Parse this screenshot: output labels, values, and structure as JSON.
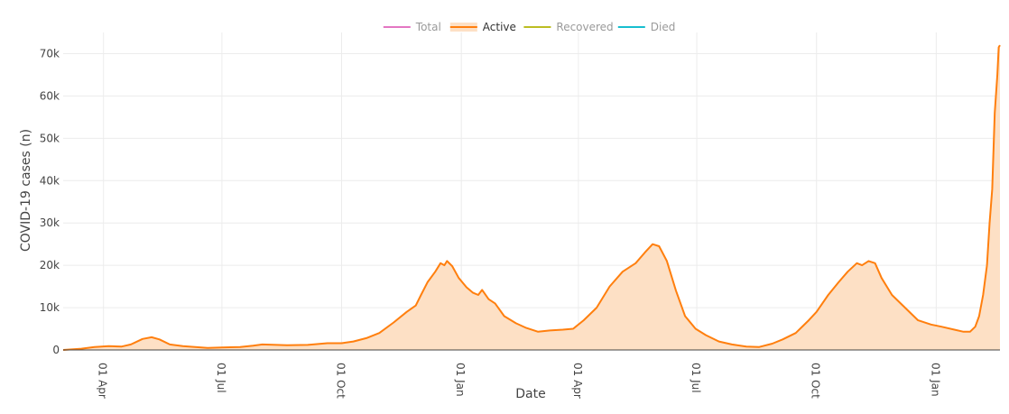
{
  "chart_data": {
    "type": "area",
    "title": "",
    "xlabel": "Date",
    "ylabel": "COVID-19 cases (n)",
    "ylim": [
      0,
      75000
    ],
    "xlim": [
      "2020-03-01",
      "2022-02-19"
    ],
    "grid": true,
    "legend_position": "top-center",
    "yticks": [
      {
        "value": 0,
        "label": "0"
      },
      {
        "value": 10000,
        "label": "10k"
      },
      {
        "value": 20000,
        "label": "20k"
      },
      {
        "value": 30000,
        "label": "30k"
      },
      {
        "value": 40000,
        "label": "40k"
      },
      {
        "value": 50000,
        "label": "50k"
      },
      {
        "value": 60000,
        "label": "60k"
      },
      {
        "value": 70000,
        "label": "70k"
      }
    ],
    "xticks": [
      {
        "date": "2020-04-01",
        "label": "01 Apr"
      },
      {
        "date": "2020-07-01",
        "label": "01 Jul"
      },
      {
        "date": "2020-10-01",
        "label": "01 Oct"
      },
      {
        "date": "2021-01-01",
        "label": "01 Jan"
      },
      {
        "date": "2021-04-01",
        "label": "01 Apr"
      },
      {
        "date": "2021-07-01",
        "label": "01 Jul"
      },
      {
        "date": "2021-10-01",
        "label": "01 Oct"
      },
      {
        "date": "2022-01-01",
        "label": "01 Jan"
      }
    ],
    "legend": [
      {
        "name": "Total",
        "color": "#e377c2",
        "visible": false
      },
      {
        "name": "Active",
        "color": "#ff7f0e",
        "visible": true
      },
      {
        "name": "Recovered",
        "color": "#bcbd22",
        "visible": false
      },
      {
        "name": "Died",
        "color": "#17becf",
        "visible": false
      }
    ],
    "series": [
      {
        "name": "Active",
        "color": "#ff7f0e",
        "fill": "#fde0c5",
        "points": [
          [
            "2020-03-01",
            0
          ],
          [
            "2020-03-15",
            300
          ],
          [
            "2020-03-25",
            700
          ],
          [
            "2020-04-05",
            900
          ],
          [
            "2020-04-15",
            800
          ],
          [
            "2020-04-22",
            1300
          ],
          [
            "2020-05-01",
            2600
          ],
          [
            "2020-05-08",
            3000
          ],
          [
            "2020-05-14",
            2500
          ],
          [
            "2020-05-22",
            1300
          ],
          [
            "2020-06-01",
            900
          ],
          [
            "2020-06-20",
            500
          ],
          [
            "2020-07-01",
            600
          ],
          [
            "2020-07-15",
            700
          ],
          [
            "2020-07-25",
            1000
          ],
          [
            "2020-08-01",
            1300
          ],
          [
            "2020-08-20",
            1100
          ],
          [
            "2020-09-05",
            1200
          ],
          [
            "2020-09-20",
            1600
          ],
          [
            "2020-10-01",
            1600
          ],
          [
            "2020-10-10",
            2000
          ],
          [
            "2020-10-20",
            2800
          ],
          [
            "2020-10-30",
            4000
          ],
          [
            "2020-11-10",
            6500
          ],
          [
            "2020-11-20",
            9000
          ],
          [
            "2020-11-27",
            10500
          ],
          [
            "2020-12-01",
            13000
          ],
          [
            "2020-12-06",
            16000
          ],
          [
            "2020-12-12",
            18500
          ],
          [
            "2020-12-16",
            20500
          ],
          [
            "2020-12-19",
            20000
          ],
          [
            "2020-12-21",
            21000
          ],
          [
            "2020-12-25",
            19800
          ],
          [
            "2020-12-30",
            17000
          ],
          [
            "2021-01-05",
            14800
          ],
          [
            "2021-01-10",
            13500
          ],
          [
            "2021-01-14",
            13000
          ],
          [
            "2021-01-17",
            14200
          ],
          [
            "2021-01-22",
            12000
          ],
          [
            "2021-01-27",
            11000
          ],
          [
            "2021-02-03",
            8000
          ],
          [
            "2021-02-12",
            6300
          ],
          [
            "2021-02-20",
            5200
          ],
          [
            "2021-03-01",
            4300
          ],
          [
            "2021-03-10",
            4600
          ],
          [
            "2021-03-20",
            4800
          ],
          [
            "2021-03-28",
            5000
          ],
          [
            "2021-04-05",
            7000
          ],
          [
            "2021-04-15",
            10000
          ],
          [
            "2021-04-25",
            15000
          ],
          [
            "2021-05-05",
            18500
          ],
          [
            "2021-05-15",
            20500
          ],
          [
            "2021-05-22",
            23000
          ],
          [
            "2021-05-28",
            25000
          ],
          [
            "2021-06-02",
            24500
          ],
          [
            "2021-06-08",
            21000
          ],
          [
            "2021-06-15",
            14000
          ],
          [
            "2021-06-22",
            8000
          ],
          [
            "2021-06-30",
            5000
          ],
          [
            "2021-07-08",
            3500
          ],
          [
            "2021-07-18",
            2000
          ],
          [
            "2021-07-28",
            1300
          ],
          [
            "2021-08-08",
            800
          ],
          [
            "2021-08-18",
            700
          ],
          [
            "2021-08-28",
            1500
          ],
          [
            "2021-09-05",
            2500
          ],
          [
            "2021-09-15",
            4000
          ],
          [
            "2021-09-25",
            7000
          ],
          [
            "2021-10-01",
            9000
          ],
          [
            "2021-10-10",
            13000
          ],
          [
            "2021-10-18",
            16000
          ],
          [
            "2021-10-25",
            18500
          ],
          [
            "2021-11-01",
            20500
          ],
          [
            "2021-11-05",
            20000
          ],
          [
            "2021-11-10",
            21000
          ],
          [
            "2021-11-15",
            20500
          ],
          [
            "2021-11-20",
            17000
          ],
          [
            "2021-11-28",
            13000
          ],
          [
            "2021-12-08",
            10000
          ],
          [
            "2021-12-18",
            7000
          ],
          [
            "2021-12-28",
            6000
          ],
          [
            "2022-01-05",
            5500
          ],
          [
            "2022-01-15",
            4800
          ],
          [
            "2022-01-22",
            4300
          ],
          [
            "2022-01-27",
            4300
          ],
          [
            "2022-01-31",
            5500
          ],
          [
            "2022-02-03",
            8000
          ],
          [
            "2022-02-06",
            13000
          ],
          [
            "2022-02-09",
            20000
          ],
          [
            "2022-02-11",
            30000
          ],
          [
            "2022-02-13",
            38000
          ],
          [
            "2022-02-15",
            56000
          ],
          [
            "2022-02-17",
            65000
          ],
          [
            "2022-02-18",
            71500
          ],
          [
            "2022-02-19",
            72000
          ]
        ]
      }
    ]
  },
  "colors": {
    "active_line": "#ff7f0e",
    "active_fill": "#fde0c5",
    "grid": "#ececec"
  }
}
